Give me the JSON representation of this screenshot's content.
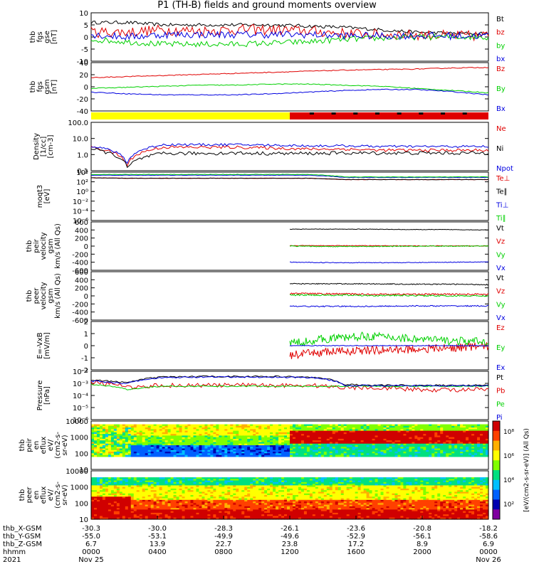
{
  "title": "P1 (TH-B) fields and ground moments overview",
  "colors": {
    "black": "#000000",
    "red": "#e00000",
    "green": "#00d000",
    "blue": "#0000e0",
    "yellow": "#ffff00"
  },
  "chart_data": [
    {
      "id": "fgs",
      "type": "line",
      "ylabel": [
        "thb",
        "fgs",
        "gse",
        "[nT]"
      ],
      "ylim": [
        -10,
        10
      ],
      "ticks": [
        "10",
        "5",
        "0",
        "-5",
        "-10"
      ],
      "series": [
        {
          "name": "Bt",
          "color": "#000000",
          "base": [
            6,
            6,
            5,
            5,
            5,
            5,
            4.5,
            4,
            3,
            2,
            1.5,
            1.5
          ],
          "noise": 0.7
        },
        {
          "name": "bz",
          "color": "#e00000",
          "base": [
            2,
            2,
            3,
            2.5,
            3,
            3,
            2.5,
            1.5,
            1,
            1,
            0.5,
            0.5
          ],
          "noise": 2.2
        },
        {
          "name": "by",
          "color": "#00d000",
          "base": [
            -1,
            -2,
            -3,
            -3,
            -3,
            -2.5,
            -2,
            -1,
            -0.5,
            0,
            0,
            0
          ],
          "noise": 1.2
        },
        {
          "name": "bx",
          "color": "#0000e0",
          "base": [
            1,
            0,
            1,
            1,
            1,
            1,
            1,
            0.5,
            0.5,
            0.5,
            0.5,
            0.5
          ],
          "noise": 1.5
        }
      ]
    },
    {
      "id": "fgs_gsm",
      "type": "line",
      "ylabel": [
        "thb",
        "fgs",
        "gsm",
        "[nT]"
      ],
      "ylim": [
        -50,
        40
      ],
      "ticks": [
        "40",
        "20",
        "0",
        "-20",
        "-40"
      ],
      "series": [
        {
          "name": "Bz",
          "color": "#e00000",
          "base": [
            12,
            14,
            16,
            18,
            20,
            22,
            24,
            26,
            27,
            28,
            30,
            31
          ],
          "noise": 0.8
        },
        {
          "name": "By",
          "color": "#00d000",
          "base": [
            -8,
            -6,
            -4,
            -2,
            -2,
            0,
            0,
            -2,
            -4,
            -8,
            -12,
            -16
          ],
          "noise": 0.8
        },
        {
          "name": "Bx",
          "color": "#0000e0",
          "base": [
            -15,
            -18,
            -20,
            -20,
            -20,
            -18,
            -15,
            -12,
            -10,
            -10,
            -14,
            -20
          ],
          "noise": 0.8
        }
      ]
    },
    {
      "id": "mode_bar",
      "type": "bar",
      "segments": [
        {
          "from": 0,
          "to": 0.5,
          "color": "#ffff00"
        },
        {
          "from": 0.5,
          "to": 1,
          "color": "#e00000"
        }
      ]
    },
    {
      "id": "density",
      "type": "line",
      "log": true,
      "ylabel": [
        "Density",
        "[1/cc]",
        "[cm-3]"
      ],
      "ylim": [
        0.1,
        200
      ],
      "ticks": [
        "100.0",
        "10.0",
        "1.0",
        "0.1"
      ],
      "series": [
        {
          "name": "Ne",
          "color": "#e00000",
          "base": [
            4,
            0.2,
            4,
            4,
            4,
            3.5,
            3,
            3,
            2.5,
            2.5,
            2.5,
            2.5
          ],
          "noise": 0.1
        },
        {
          "name": "Ni",
          "color": "#000000",
          "base": [
            3,
            0.15,
            1.5,
            1.5,
            1.6,
            1.5,
            1.5,
            1.6,
            1.6,
            1.6,
            1.6,
            1.6
          ],
          "noise": 0.12
        },
        {
          "name": "Npot",
          "color": "#0000e0",
          "base": [
            5,
            0.3,
            6,
            6,
            6,
            5.5,
            5,
            5,
            4.5,
            4.5,
            4.5,
            4.5
          ],
          "noise": 0.08
        }
      ],
      "legend_extra": [
        "Ne",
        "Ni",
        "Npot"
      ]
    },
    {
      "id": "temperature",
      "type": "line",
      "log": true,
      "ylabel": [
        "moqt3",
        "[eV]"
      ],
      "ylim": [
        1e-07,
        10000
      ],
      "ticks": [
        "10⁴",
        "10²",
        "10⁰",
        "10⁻²",
        "10⁻⁴",
        "10⁻⁶"
      ],
      "series": [
        {
          "name": "Te⊥",
          "color": "#e00000",
          "base": [
            500,
            400,
            400,
            400,
            400,
            400,
            400,
            200,
            200,
            200,
            200,
            200
          ],
          "noise": 0.05
        },
        {
          "name": "Te∥",
          "color": "#000000",
          "base": [
            500,
            400,
            400,
            400,
            400,
            400,
            400,
            200,
            200,
            200,
            200,
            200
          ],
          "noise": 0.05
        },
        {
          "name": "Ti⊥",
          "color": "#0000e0",
          "base": [
            2000,
            2000,
            2000,
            2000,
            2000,
            2000,
            2000,
            600,
            600,
            600,
            600,
            600
          ],
          "noise": 0.05
        },
        {
          "name": "Ti∥",
          "color": "#00d000",
          "base": [
            3000,
            3000,
            3000,
            3000,
            3000,
            3000,
            3000,
            800,
            800,
            800,
            800,
            800
          ],
          "noise": 0.05
        }
      ]
    },
    {
      "id": "peir_vel",
      "type": "line",
      "ylabel": [
        "thb",
        "peir",
        "velocity",
        "gsm",
        "km/s (All Qs)"
      ],
      "ylim": [
        -600,
        600
      ],
      "ticks": [
        "600",
        "400",
        "200",
        "0",
        "-200",
        "-400",
        "-600"
      ],
      "start": 0.5,
      "series": [
        {
          "name": "Vt",
          "color": "#000000",
          "base": [
            420,
            420,
            420,
            410,
            410,
            400
          ],
          "noise": 6
        },
        {
          "name": "Vz",
          "color": "#e00000",
          "base": [
            10,
            10,
            10,
            5,
            5,
            5
          ],
          "noise": 8
        },
        {
          "name": "Vy",
          "color": "#00d000",
          "base": [
            0,
            -10,
            -10,
            -5,
            0,
            0
          ],
          "noise": 10
        },
        {
          "name": "Vx",
          "color": "#0000e0",
          "base": [
            -400,
            -410,
            -410,
            -410,
            -400,
            -390
          ],
          "noise": 8
        }
      ]
    },
    {
      "id": "peer_vel",
      "type": "line",
      "ylabel": [
        "thb",
        "peer",
        "velocity",
        "gsm",
        "km/s (All Qs)"
      ],
      "ylim": [
        -600,
        600
      ],
      "ticks": [
        "600",
        "400",
        "200",
        "0",
        "-200",
        "-400",
        "-600"
      ],
      "start": 0.5,
      "series": [
        {
          "name": "Vt",
          "color": "#000000",
          "base": [
            300,
            300,
            300,
            290,
            290,
            280
          ],
          "noise": 12
        },
        {
          "name": "Vz",
          "color": "#e00000",
          "base": [
            60,
            50,
            40,
            40,
            40,
            40
          ],
          "noise": 20
        },
        {
          "name": "Vy",
          "color": "#00d000",
          "base": [
            20,
            20,
            10,
            10,
            0,
            0
          ],
          "noise": 18
        },
        {
          "name": "Vx",
          "color": "#0000e0",
          "base": [
            -260,
            -260,
            -260,
            -250,
            -250,
            -250
          ],
          "noise": 15
        }
      ]
    },
    {
      "id": "efield",
      "type": "line",
      "ylabel": [
        "E=-VxB",
        "[mV/m]"
      ],
      "ylim": [
        -2,
        2
      ],
      "ticks": [
        "2",
        "1",
        "0",
        "-1",
        "-2"
      ],
      "start": 0.5,
      "series": [
        {
          "name": "Ez",
          "color": "#e00000",
          "base": [
            -0.8,
            -0.5,
            -0.4,
            -0.3,
            -0.2,
            0
          ],
          "noise": 0.35
        },
        {
          "name": "Ey",
          "color": "#00d000",
          "base": [
            0.2,
            0.6,
            0.8,
            0.6,
            0.4,
            0.3
          ],
          "noise": 0.35
        },
        {
          "name": "Ex",
          "color": "#0000e0",
          "base": [
            0,
            0,
            0,
            0,
            0,
            0
          ],
          "noise": 0.03
        }
      ]
    },
    {
      "id": "pressure",
      "type": "line",
      "log": true,
      "ylabel": [
        "Pressure",
        "[nPa]"
      ],
      "ylim": [
        1e-07,
        0.3
      ],
      "ticks": [
        "10⁻²",
        "10⁻³",
        "10⁻⁴",
        "10⁻⁵",
        "10⁻⁶"
      ],
      "series": [
        {
          "name": "Pt",
          "color": "#000000",
          "base": [
            0.02,
            0.008,
            0.05,
            0.06,
            0.06,
            0.06,
            0.05,
            0.005,
            0.004,
            0.004,
            0.004,
            0.004
          ],
          "noise": 0.1
        },
        {
          "name": "Pb",
          "color": "#e00000",
          "base": [
            0.01,
            0.002,
            0.004,
            0.004,
            0.004,
            0.004,
            0.004,
            0.002,
            0.002,
            0.001,
            0.001,
            0.001
          ],
          "noise": 0.3
        },
        {
          "name": "Pe",
          "color": "#00d000",
          "base": [
            0.005,
            0.001,
            0.003,
            0.003,
            0.003,
            0.003,
            0.003,
            0.003,
            0.003,
            0.003,
            0.003,
            0.003
          ],
          "noise": 0.08
        },
        {
          "name": "Pi",
          "color": "#0000e0",
          "base": [
            0.015,
            0.006,
            0.04,
            0.05,
            0.05,
            0.05,
            0.045,
            0.004,
            0.0035,
            0.0035,
            0.0035,
            0.0035
          ],
          "noise": 0.1
        }
      ]
    },
    {
      "id": "peir_spec",
      "type": "heatmap",
      "ylabel": [
        "thb",
        "peir",
        "en",
        "eflux",
        "eV/",
        "(cm2-s-",
        "sr-eV)"
      ],
      "ylim": [
        5,
        20000
      ],
      "ticks": [
        "10000",
        "1000",
        "100",
        "10"
      ]
    },
    {
      "id": "peer_spec",
      "type": "heatmap",
      "ylabel": [
        "thb",
        "peer",
        "en",
        "eflux",
        "eV/",
        "(cm2-s-",
        "sr-eV)"
      ],
      "ylim": [
        5,
        20000
      ],
      "ticks": [
        "10000",
        "1000",
        "100",
        "10"
      ]
    }
  ],
  "colorbar": {
    "label": "[eV/(cm2-s-sr-eV)] (All Qs)",
    "ticks": [
      "10⁸",
      "10⁶",
      "10⁴",
      "10²"
    ]
  },
  "x_axis": {
    "rows": [
      {
        "label": "thb_X-GSM",
        "values": [
          "-30.3",
          "-30.0",
          "-28.3",
          "-26.1",
          "-23.6",
          "-20.8",
          "-18.2"
        ]
      },
      {
        "label": "thb_Y-GSM",
        "values": [
          "-55.0",
          "-53.1",
          "-49.9",
          "-49.6",
          "-52.9",
          "-56.1",
          "-58.6"
        ]
      },
      {
        "label": "thb_Z-GSM",
        "values": [
          "6.7",
          "13.9",
          "22.7",
          "23.8",
          "17.2",
          "8.9",
          "6.9"
        ]
      },
      {
        "label": "hhmm",
        "values": [
          "0000",
          "0400",
          "0800",
          "1200",
          "1600",
          "2000",
          "0000"
        ]
      },
      {
        "label": "2021",
        "values": [
          "Nov 25",
          "",
          "",
          "",
          "",
          "",
          "Nov 26"
        ]
      }
    ]
  }
}
